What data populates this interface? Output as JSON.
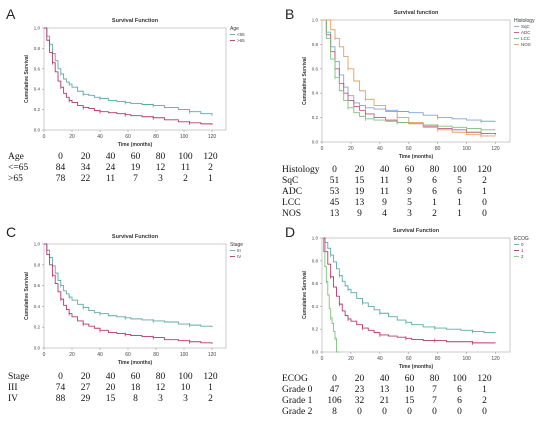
{
  "chart_data": [
    {
      "type": "line",
      "panel": "A",
      "title": "Survival Function",
      "xlabel": "Time (months)",
      "ylabel": "Cumulative Survival",
      "xlim": [
        0,
        130
      ],
      "ylim": [
        0,
        1.0
      ],
      "x_ticks": [
        0,
        20,
        40,
        60,
        80,
        100,
        120
      ],
      "y_ticks": [
        "0.0",
        "0.2",
        "0.4",
        "0.6",
        "0.8",
        "1.0"
      ],
      "legend_title": "Age",
      "legend_placement": "top-right",
      "series": [
        {
          "name": "<65",
          "color": "#5da9a8",
          "x": [
            0,
            2,
            4,
            6,
            8,
            10,
            12,
            14,
            16,
            18,
            20,
            24,
            28,
            32,
            36,
            40,
            46,
            52,
            58,
            62,
            70,
            78,
            86,
            96,
            104,
            112,
            120
          ],
          "y": [
            1.0,
            0.92,
            0.84,
            0.75,
            0.68,
            0.6,
            0.55,
            0.5,
            0.47,
            0.45,
            0.42,
            0.38,
            0.35,
            0.34,
            0.32,
            0.31,
            0.29,
            0.28,
            0.27,
            0.26,
            0.25,
            0.24,
            0.22,
            0.2,
            0.18,
            0.16,
            0.14
          ]
        },
        {
          "name": ">65",
          "color": "#b03a6e",
          "x": [
            0,
            2,
            4,
            6,
            8,
            10,
            12,
            14,
            16,
            18,
            20,
            24,
            28,
            32,
            36,
            40,
            46,
            52,
            58,
            62,
            70,
            78,
            86,
            96,
            104,
            112,
            120
          ],
          "y": [
            1.0,
            0.88,
            0.76,
            0.66,
            0.57,
            0.48,
            0.42,
            0.36,
            0.32,
            0.29,
            0.27,
            0.24,
            0.22,
            0.21,
            0.19,
            0.18,
            0.17,
            0.16,
            0.15,
            0.14,
            0.13,
            0.12,
            0.1,
            0.08,
            0.07,
            0.06,
            0.05
          ]
        }
      ],
      "risk_table": {
        "header": [
          "Age",
          "0",
          "20",
          "40",
          "60",
          "80",
          "100",
          "120"
        ],
        "rows": [
          [
            "<=65",
            "84",
            "34",
            "24",
            "19",
            "12",
            "11",
            "2"
          ],
          [
            ">65",
            "78",
            "22",
            "11",
            "7",
            "3",
            "2",
            "1"
          ]
        ]
      }
    },
    {
      "type": "line",
      "panel": "B",
      "title": "Survival function",
      "xlabel": "Time (months)",
      "ylabel": "Cumulative Survival",
      "xlim": [
        0,
        130
      ],
      "ylim": [
        0,
        1.0
      ],
      "x_ticks": [
        0,
        20,
        40,
        60,
        80,
        100,
        120
      ],
      "y_ticks": [
        "0.0",
        "0.2",
        "0.4",
        "0.6",
        "0.8",
        "1.0"
      ],
      "legend_title": "Histology",
      "legend_placement": "top-right",
      "series": [
        {
          "name": "SqC",
          "color": "#7ea6d6",
          "x": [
            0,
            3,
            6,
            9,
            12,
            15,
            18,
            22,
            26,
            30,
            36,
            44,
            52,
            60,
            70,
            80,
            90,
            100,
            110,
            120
          ],
          "y": [
            1.0,
            0.9,
            0.78,
            0.66,
            0.55,
            0.45,
            0.38,
            0.32,
            0.3,
            0.28,
            0.27,
            0.26,
            0.25,
            0.24,
            0.22,
            0.2,
            0.19,
            0.18,
            0.17,
            0.17
          ]
        },
        {
          "name": "ADC",
          "color": "#c05a7a",
          "x": [
            0,
            3,
            6,
            9,
            12,
            15,
            18,
            22,
            26,
            30,
            36,
            44,
            52,
            60,
            70,
            80,
            90,
            100,
            110,
            120
          ],
          "y": [
            1.0,
            0.88,
            0.74,
            0.6,
            0.48,
            0.4,
            0.34,
            0.29,
            0.26,
            0.23,
            0.2,
            0.18,
            0.16,
            0.15,
            0.13,
            0.11,
            0.1,
            0.08,
            0.07,
            0.06
          ]
        },
        {
          "name": "LCC",
          "color": "#7fc07f",
          "x": [
            0,
            3,
            6,
            9,
            12,
            15,
            18,
            22,
            26,
            30,
            36,
            44,
            52,
            60,
            70,
            80,
            90,
            100,
            110,
            120
          ],
          "y": [
            1.0,
            0.85,
            0.68,
            0.53,
            0.42,
            0.34,
            0.28,
            0.24,
            0.21,
            0.19,
            0.18,
            0.17,
            0.16,
            0.15,
            0.14,
            0.13,
            0.12,
            0.11,
            0.1,
            0.1
          ]
        },
        {
          "name": "NOS",
          "color": "#e0a060",
          "x": [
            0,
            3,
            6,
            9,
            12,
            15,
            18,
            22,
            26,
            30,
            36,
            44,
            52,
            60,
            70,
            80,
            90,
            100,
            110,
            120
          ],
          "y": [
            1.0,
            1.0,
            0.92,
            0.85,
            0.78,
            0.7,
            0.6,
            0.5,
            0.42,
            0.35,
            0.3,
            0.25,
            0.2,
            0.16,
            0.12,
            0.1,
            0.08,
            0.06,
            0.05,
            0.05
          ]
        }
      ],
      "risk_table": {
        "header": [
          "Histology",
          "0",
          "20",
          "40",
          "60",
          "80",
          "100",
          "120"
        ],
        "rows": [
          [
            "SqC",
            "51",
            "15",
            "11",
            "9",
            "6",
            "5",
            "2"
          ],
          [
            "ADC",
            "53",
            "19",
            "11",
            "9",
            "6",
            "6",
            "1"
          ],
          [
            "LCC",
            "45",
            "13",
            "9",
            "5",
            "1",
            "1",
            "0"
          ],
          [
            "NOS",
            "13",
            "9",
            "4",
            "3",
            "2",
            "1",
            "0"
          ]
        ]
      }
    },
    {
      "type": "line",
      "panel": "C",
      "title": "Survival Function",
      "xlabel": "Time (months)",
      "ylabel": "Cumulative Survival",
      "xlim": [
        0,
        130
      ],
      "ylim": [
        0,
        1.0
      ],
      "x_ticks": [
        0,
        20,
        40,
        60,
        80,
        100,
        120
      ],
      "y_ticks": [
        "0.0",
        "0.2",
        "0.4",
        "0.6",
        "0.8",
        "1.0"
      ],
      "legend_title": "Stage",
      "legend_placement": "top-right",
      "series": [
        {
          "name": "III",
          "color": "#5da9a8",
          "x": [
            0,
            2,
            4,
            6,
            8,
            10,
            12,
            14,
            16,
            18,
            20,
            24,
            28,
            32,
            36,
            40,
            46,
            52,
            58,
            62,
            70,
            78,
            86,
            96,
            104,
            112,
            120
          ],
          "y": [
            1.0,
            0.94,
            0.87,
            0.79,
            0.72,
            0.65,
            0.6,
            0.55,
            0.52,
            0.49,
            0.46,
            0.42,
            0.39,
            0.36,
            0.34,
            0.33,
            0.31,
            0.3,
            0.29,
            0.28,
            0.27,
            0.26,
            0.25,
            0.23,
            0.22,
            0.21,
            0.2
          ]
        },
        {
          "name": "IV",
          "color": "#b03a6e",
          "x": [
            0,
            2,
            4,
            6,
            8,
            10,
            12,
            14,
            16,
            18,
            20,
            24,
            28,
            32,
            36,
            40,
            46,
            52,
            58,
            62,
            70,
            78,
            86,
            96,
            104,
            112,
            120
          ],
          "y": [
            1.0,
            0.9,
            0.8,
            0.7,
            0.62,
            0.54,
            0.47,
            0.41,
            0.37,
            0.33,
            0.3,
            0.26,
            0.23,
            0.21,
            0.19,
            0.17,
            0.15,
            0.14,
            0.13,
            0.12,
            0.11,
            0.1,
            0.08,
            0.07,
            0.06,
            0.05,
            0.04
          ]
        }
      ],
      "risk_table": {
        "header": [
          "Stage",
          "0",
          "20",
          "40",
          "60",
          "80",
          "100",
          "120"
        ],
        "rows": [
          [
            "III",
            "74",
            "27",
            "20",
            "18",
            "12",
            "10",
            "1"
          ],
          [
            "IV",
            "88",
            "29",
            "15",
            "8",
            "3",
            "3",
            "2"
          ]
        ]
      }
    },
    {
      "type": "line",
      "panel": "D",
      "title": "Survival Function",
      "xlabel": "Time (months)",
      "ylabel": "Cumulative Survival",
      "xlim": [
        0,
        130
      ],
      "ylim": [
        0,
        1.0
      ],
      "x_ticks": [
        0,
        20,
        40,
        60,
        80,
        100,
        120
      ],
      "y_ticks": [
        "0.0",
        "0.2",
        "0.4",
        "0.6",
        "0.8",
        "1.0"
      ],
      "legend_title": "ECOG",
      "legend_placement": "top-right",
      "series": [
        {
          "name": "0",
          "color": "#5da9a8",
          "x": [
            0,
            2,
            4,
            6,
            8,
            10,
            12,
            14,
            16,
            18,
            20,
            24,
            28,
            32,
            36,
            40,
            46,
            52,
            58,
            62,
            70,
            78,
            86,
            96,
            104,
            112,
            120
          ],
          "y": [
            1.0,
            0.96,
            0.91,
            0.85,
            0.79,
            0.73,
            0.67,
            0.62,
            0.58,
            0.55,
            0.52,
            0.47,
            0.43,
            0.4,
            0.37,
            0.34,
            0.31,
            0.28,
            0.26,
            0.24,
            0.22,
            0.21,
            0.2,
            0.19,
            0.18,
            0.17,
            0.17
          ]
        },
        {
          "name": "1",
          "color": "#b03a6e",
          "x": [
            0,
            2,
            4,
            6,
            8,
            10,
            12,
            14,
            16,
            18,
            20,
            24,
            28,
            32,
            36,
            40,
            46,
            52,
            58,
            62,
            70,
            78,
            86,
            96,
            104,
            112,
            120
          ],
          "y": [
            1.0,
            0.88,
            0.77,
            0.66,
            0.57,
            0.49,
            0.42,
            0.36,
            0.32,
            0.29,
            0.27,
            0.24,
            0.21,
            0.19,
            0.17,
            0.15,
            0.14,
            0.13,
            0.12,
            0.11,
            0.1,
            0.1,
            0.09,
            0.09,
            0.08,
            0.08,
            0.08
          ]
        },
        {
          "name": "2",
          "color": "#7fc07f",
          "x": [
            0,
            1,
            2,
            3,
            4,
            5,
            6,
            7,
            8,
            9,
            10,
            12
          ],
          "y": [
            1.0,
            0.88,
            0.75,
            0.62,
            0.5,
            0.38,
            0.3,
            0.25,
            0.18,
            0.12,
            0.0,
            0.0
          ]
        }
      ],
      "risk_table": {
        "header": [
          "ECOG",
          "0",
          "20",
          "40",
          "60",
          "80",
          "100",
          "120"
        ],
        "rows": [
          [
            "Grade 0",
            "47",
            "23",
            "13",
            "10",
            "7",
            "6",
            "1"
          ],
          [
            "Grade 1",
            "106",
            "32",
            "21",
            "15",
            "7",
            "6",
            "2"
          ],
          [
            "Grade 2",
            "8",
            "0",
            "0",
            "0",
            "0",
            "0",
            "0"
          ]
        ]
      }
    }
  ]
}
